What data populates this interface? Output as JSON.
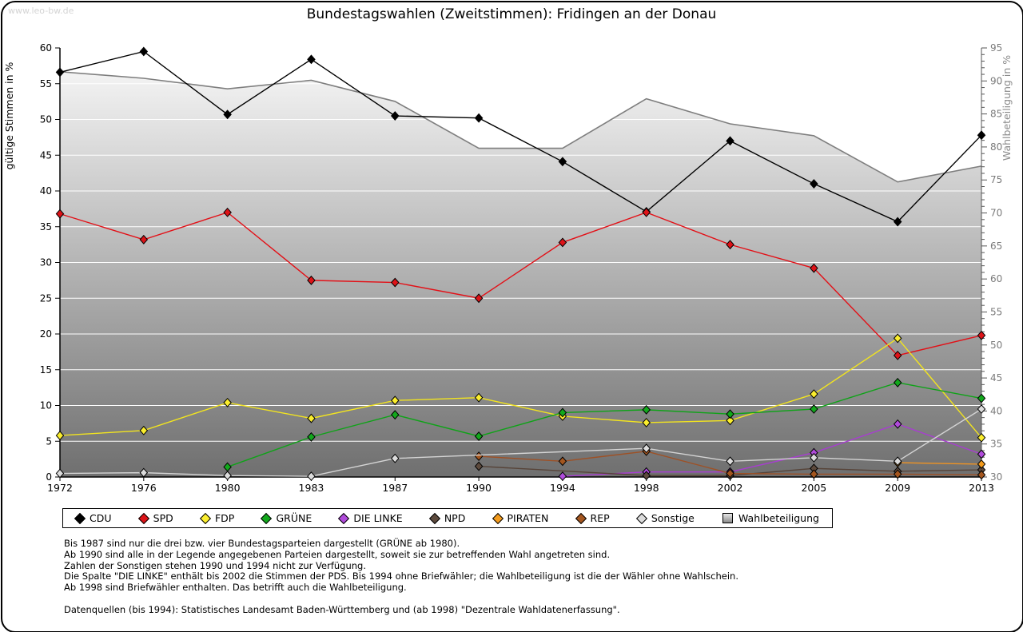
{
  "watermark": "www.leo-bw.de",
  "title": "Bundestagswahlen (Zweitstimmen): Fridingen an der Donau",
  "chart_data": {
    "type": "line",
    "x": [
      1972,
      1976,
      1980,
      1983,
      1987,
      1990,
      1994,
      1998,
      2002,
      2005,
      2009,
      2013
    ],
    "left_axis": {
      "label": "gültige Stimmen in %",
      "min": 0,
      "max": 60,
      "step": 5
    },
    "right_axis": {
      "label": "Wahlbeteiligung in %",
      "min": 30,
      "max": 95,
      "step": 5,
      "minor_step": 1
    },
    "grid": "horizontal-white",
    "series": [
      {
        "name": "CDU",
        "color": "#000000",
        "fill": "#000000",
        "values": [
          56.6,
          59.5,
          50.7,
          58.4,
          50.5,
          50.2,
          44.1,
          37.1,
          47.0,
          41.0,
          35.7,
          47.8
        ]
      },
      {
        "name": "SPD",
        "color": "#e31017",
        "fill": "#dd1318",
        "values": [
          36.8,
          33.2,
          37.0,
          27.5,
          27.2,
          25.0,
          32.8,
          37.0,
          32.5,
          29.2,
          17.0,
          19.8
        ]
      },
      {
        "name": "FDP",
        "color": "#f2e41f",
        "fill": "#fbee2e",
        "values": [
          5.8,
          6.5,
          10.4,
          8.2,
          10.7,
          11.1,
          8.5,
          7.6,
          7.9,
          11.6,
          19.4,
          5.5
        ]
      },
      {
        "name": "GRÜNE",
        "color": "#0fa318",
        "fill": "#12a81c",
        "values": [
          null,
          null,
          1.4,
          5.6,
          8.7,
          5.7,
          9.0,
          9.4,
          8.8,
          9.5,
          13.2,
          11.0
        ]
      },
      {
        "name": "DIE LINKE",
        "color": "#a83dd1",
        "fill": "#b04bdb",
        "values": [
          null,
          null,
          null,
          null,
          null,
          null,
          0.1,
          0.7,
          0.7,
          3.4,
          7.4,
          3.2
        ]
      },
      {
        "name": "NPD",
        "color": "#574439",
        "fill": "#5d4a3d",
        "values": [
          null,
          null,
          null,
          null,
          null,
          1.5,
          null,
          0.2,
          0.2,
          1.2,
          0.8,
          1.0
        ]
      },
      {
        "name": "PIRATEN",
        "color": "#ef9322",
        "fill": "#f39b1d",
        "values": [
          null,
          null,
          null,
          null,
          null,
          null,
          null,
          null,
          null,
          null,
          2.0,
          1.8
        ]
      },
      {
        "name": "REP",
        "color": "#9e5126",
        "fill": "#a4561f",
        "values": [
          null,
          null,
          null,
          null,
          null,
          2.9,
          2.2,
          3.6,
          0.5,
          0.4,
          0.4,
          0.3
        ]
      },
      {
        "name": "Sonstige",
        "color": "#d4d4d4",
        "fill": "#dcdcdc",
        "values": [
          0.5,
          0.6,
          0.2,
          0.1,
          2.6,
          null,
          null,
          4.0,
          2.2,
          2.7,
          2.2,
          9.5
        ]
      }
    ],
    "wahlbeteiligung": {
      "name": "Wahlbeteiligung",
      "axis": "right",
      "line_color": "#7e7e7e",
      "area_gradient_top": "#fbfbfb",
      "area_gradient_bottom": "#6f6f6f",
      "values": [
        91.4,
        90.4,
        88.8,
        90.1,
        86.9,
        79.8,
        79.8,
        87.3,
        83.5,
        81.7,
        74.7,
        77.1
      ]
    }
  },
  "legend": {
    "items": [
      {
        "label": "CDU",
        "marker": "diamond",
        "color": "#000000"
      },
      {
        "label": "SPD",
        "marker": "diamond",
        "color": "#dd1318"
      },
      {
        "label": "FDP",
        "marker": "diamond",
        "color": "#fbee2e"
      },
      {
        "label": "GRÜNE",
        "marker": "diamond",
        "color": "#12a81c"
      },
      {
        "label": "DIE LINKE",
        "marker": "diamond",
        "color": "#b04bdb"
      },
      {
        "label": "NPD",
        "marker": "diamond",
        "color": "#5d4a3d"
      },
      {
        "label": "PIRATEN",
        "marker": "diamond",
        "color": "#f39b1d"
      },
      {
        "label": "REP",
        "marker": "diamond",
        "color": "#a4561f"
      },
      {
        "label": "Sonstige",
        "marker": "diamond",
        "color": "#dcdcdc"
      },
      {
        "label": "Wahlbeteiligung",
        "marker": "square",
        "color": "#b5b5b5"
      }
    ]
  },
  "notes": [
    "Bis 1987 sind nur die drei bzw. vier Bundestagsparteien dargestellt (GRÜNE ab 1980).",
    "Ab 1990 sind alle in der Legende angegebenen Parteien dargestellt, soweit sie zur betreffenden Wahl angetreten sind.",
    "Zahlen der Sonstigen stehen 1990 und 1994 nicht zur Verfügung.",
    "Die Spalte \"DIE LINKE\" enthält bis 2002 die Stimmen der PDS. Bis 1994 ohne Briefwähler; die Wahlbeteiligung ist die der Wähler ohne Wahlschein.",
    "Ab 1998 sind Briefwähler enthalten. Das betrifft auch die Wahlbeteiligung.",
    "",
    "Datenquellen (bis 1994): Statistisches Landesamt Baden-Württemberg und (ab 1998) \"Dezentrale Wahldatenerfassung\"."
  ]
}
